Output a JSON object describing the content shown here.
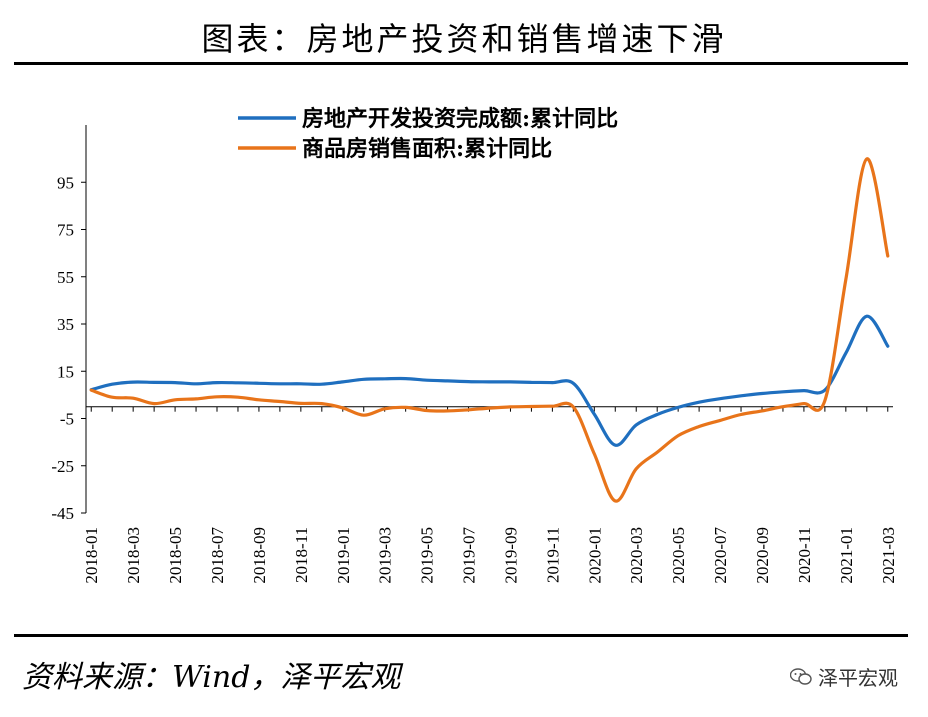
{
  "header": {
    "title": "图表：房地产投资和销售增速下滑"
  },
  "footer": {
    "source": "资料来源：Wind，泽平宏观",
    "watermark": "泽平宏观",
    "watermark_icon": "wechat-icon"
  },
  "chart_data": {
    "type": "line",
    "ylim": [
      -45,
      115
    ],
    "yticks": [
      -45,
      -25,
      -5,
      15,
      35,
      55,
      75,
      95
    ],
    "x": [
      "2018-01",
      "2018-02",
      "2018-03",
      "2018-04",
      "2018-05",
      "2018-06",
      "2018-07",
      "2018-08",
      "2018-09",
      "2018-10",
      "2018-11",
      "2018-12",
      "2019-01",
      "2019-02",
      "2019-03",
      "2019-04",
      "2019-05",
      "2019-06",
      "2019-07",
      "2019-08",
      "2019-09",
      "2019-10",
      "2019-11",
      "2019-12",
      "2020-01",
      "2020-02",
      "2020-03",
      "2020-04",
      "2020-05",
      "2020-06",
      "2020-07",
      "2020-08",
      "2020-09",
      "2020-10",
      "2020-11",
      "2020-12",
      "2021-01",
      "2021-02",
      "2021-03"
    ],
    "xtick_labels": [
      "2018-01",
      "2018-03",
      "2018-05",
      "2018-07",
      "2018-09",
      "2018-11",
      "2019-01",
      "2019-03",
      "2019-05",
      "2019-07",
      "2019-09",
      "2019-11",
      "2020-01",
      "2020-03",
      "2020-05",
      "2020-07",
      "2020-09",
      "2020-11",
      "2021-01",
      "2021-03"
    ],
    "legend_position": "top",
    "series": [
      {
        "name": "房地产开发投资完成额:累计同比",
        "color": "#1f6fbf",
        "values": [
          7.2,
          9.5,
          10.4,
          10.3,
          10.2,
          9.7,
          10.2,
          10.1,
          9.9,
          9.7,
          9.7,
          9.5,
          10.5,
          11.6,
          11.8,
          11.9,
          11.2,
          10.9,
          10.6,
          10.5,
          10.5,
          10.3,
          10.2,
          9.9,
          null,
          -16.3,
          -7.7,
          -3.3,
          -0.3,
          1.9,
          3.4,
          4.6,
          5.6,
          6.3,
          6.8,
          7.0,
          null,
          38.3,
          25.6
        ]
      },
      {
        "name": "商品房销售面积:累计同比",
        "color": "#e8741a",
        "values": [
          7.0,
          4.0,
          3.6,
          1.3,
          2.9,
          3.3,
          4.2,
          4.0,
          2.9,
          2.2,
          1.4,
          1.3,
          -0.5,
          -3.6,
          -0.9,
          -0.3,
          -1.6,
          -1.8,
          -1.3,
          -0.6,
          -0.1,
          0.1,
          0.2,
          -0.1,
          null,
          -39.9,
          -26.3,
          -19.3,
          -12.3,
          -8.4,
          -5.8,
          -3.3,
          -1.8,
          0.0,
          1.3,
          2.6,
          null,
          104.9,
          63.8
        ]
      }
    ]
  }
}
